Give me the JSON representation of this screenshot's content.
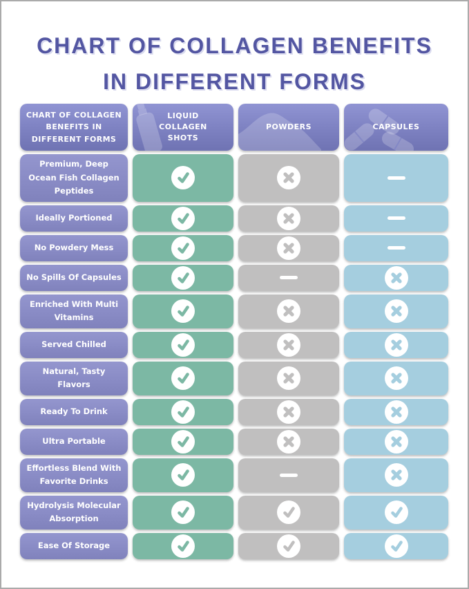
{
  "title": {
    "line1": "CHART OF COLLAGEN BENEFITS",
    "line2": "IN DIFFERENT FORMS"
  },
  "colors": {
    "title_text": "#5356a2",
    "header_purple_top": "#9094d3",
    "header_purple_bottom": "#6f73b3",
    "row_label_purple": "#8a8cc6",
    "liquid_green": "#7cb8a4",
    "powder_gray": "#c0bfbf",
    "capsule_blue": "#a5cedf",
    "icon_circle_white": "#ffffff"
  },
  "chart_data": {
    "type": "table",
    "title": "Chart of Collagen Benefits in Different Forms",
    "corner_header_lines": [
      "CHART OF COLLAGEN",
      "BENEFITS IN",
      "DIFFERENT FORMS"
    ],
    "columns": [
      {
        "label": "LIQUID COLLAGEN SHOTS",
        "icon": "bottle-icon",
        "color_key": "liquid_green"
      },
      {
        "label": "POWDERS",
        "icon": "powder-icon",
        "color_key": "powder_gray"
      },
      {
        "label": "CAPSULES",
        "icon": "capsules-icon",
        "color_key": "capsule_blue"
      }
    ],
    "rows": [
      {
        "label": "Premium, Deep Ocean Fish Collagen Peptides",
        "values": [
          "check",
          "cross",
          "dash"
        ]
      },
      {
        "label": "Ideally Portioned",
        "values": [
          "check",
          "cross",
          "dash"
        ]
      },
      {
        "label": "No Powdery Mess",
        "values": [
          "check",
          "cross",
          "dash"
        ]
      },
      {
        "label": "No Spills Of Capsules",
        "values": [
          "check",
          "dash",
          "cross"
        ]
      },
      {
        "label": "Enriched With Multi Vitamins",
        "values": [
          "check",
          "cross",
          "cross"
        ]
      },
      {
        "label": "Served Chilled",
        "values": [
          "check",
          "cross",
          "cross"
        ]
      },
      {
        "label": "Natural, Tasty Flavors",
        "values": [
          "check",
          "cross",
          "cross"
        ]
      },
      {
        "label": "Ready To Drink",
        "values": [
          "check",
          "cross",
          "cross"
        ]
      },
      {
        "label": "Ultra Portable",
        "values": [
          "check",
          "cross",
          "cross"
        ]
      },
      {
        "label": "Effortless Blend With Favorite Drinks",
        "values": [
          "check",
          "dash",
          "cross"
        ]
      },
      {
        "label": "Hydrolysis Molecular Absorption",
        "values": [
          "check",
          "check",
          "check"
        ]
      },
      {
        "label": "Ease Of Storage",
        "values": [
          "check",
          "check",
          "check"
        ]
      }
    ]
  }
}
